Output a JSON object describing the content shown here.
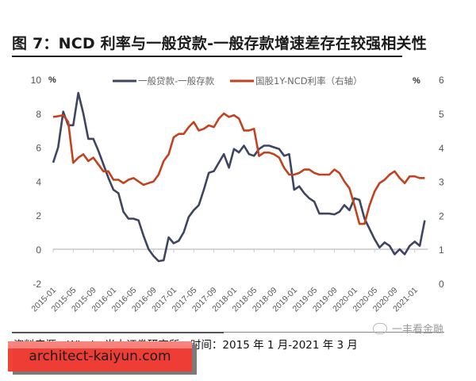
{
  "title": "图 7：NCD 利率与一般贷款-一般存款增速差存在较强相关性",
  "source": "资料来源：Wind，光大证券研究所；时间：2015 年 1 月-2021 年 3 月",
  "watermark": "一丰看金融",
  "banner": {
    "text": "architect-kaiyun.com",
    "color": "#f23c32"
  },
  "colors": {
    "series_loan_deposit": "#3f4461",
    "series_ncd": "#c2421f",
    "axis": "#c8c8c8",
    "tick_text": "#555555"
  },
  "chart_data": {
    "type": "line",
    "title": "图 7：NCD 利率与一般贷款-一般存款增速差存在较强相关性",
    "xlabel": "",
    "ylabel": "%",
    "y2label": "%",
    "ylim": [
      -2,
      10
    ],
    "y2lim": [
      0,
      6
    ],
    "yticks": [
      -2,
      0,
      2,
      4,
      6,
      8,
      10
    ],
    "y2ticks": [
      0,
      1,
      2,
      3,
      4,
      5,
      6
    ],
    "x_tick_labels": [
      "2015-01",
      "2015-05",
      "2015-09",
      "2016-01",
      "2016-05",
      "2016-09",
      "2017-01",
      "2017-05",
      "2017-09",
      "2018-01",
      "2018-05",
      "2018-09",
      "2019-01",
      "2019-05",
      "2019-09",
      "2020-01",
      "2020-05",
      "2020-09",
      "2021-01"
    ],
    "x_start": "2015-01",
    "x_end": "2021-03",
    "grid": false,
    "legend_position": "top",
    "series": [
      {
        "name": "一般贷款-一般存款",
        "axis": "left",
        "color": "#3f4461",
        "values": [
          5.1,
          6.0,
          8.1,
          7.3,
          7.3,
          9.2,
          8.0,
          6.5,
          6.5,
          5.8,
          5.0,
          4.2,
          3.5,
          3.3,
          2.2,
          1.8,
          1.8,
          1.7,
          0.8,
          0.0,
          -0.4,
          -0.7,
          -0.65,
          0.7,
          0.35,
          0.5,
          1.0,
          1.9,
          2.3,
          2.6,
          3.5,
          4.5,
          4.6,
          5.1,
          5.6,
          4.8,
          5.9,
          5.7,
          6.1,
          5.6,
          5.5,
          5.9,
          6.1,
          6.1,
          6.0,
          5.9,
          5.5,
          5.6,
          3.5,
          3.7,
          3.3,
          3.0,
          2.8,
          2.1,
          2.1,
          2.1,
          2.05,
          2.2,
          2.6,
          2.3,
          3.0,
          2.9,
          1.8,
          1.2,
          0.6,
          0.1,
          0.4,
          0.2,
          -0.3,
          0.0,
          -0.3,
          0.2,
          0.45,
          0.2,
          1.7
        ]
      },
      {
        "name": "国股1Y-NCD利率（右轴）",
        "axis": "right",
        "color": "#c2421f",
        "values": [
          4.9,
          4.92,
          4.95,
          4.75,
          3.55,
          3.7,
          3.8,
          3.6,
          3.7,
          3.5,
          3.3,
          3.3,
          3.05,
          3.05,
          2.95,
          3.05,
          3.1,
          3.0,
          2.9,
          2.95,
          3.0,
          3.2,
          3.6,
          3.8,
          4.3,
          4.4,
          4.4,
          4.6,
          4.75,
          4.5,
          4.55,
          4.65,
          4.6,
          4.85,
          5.0,
          4.9,
          4.95,
          4.85,
          4.5,
          4.5,
          4.55,
          3.75,
          3.85,
          3.85,
          3.8,
          3.7,
          3.4,
          3.2,
          3.2,
          3.25,
          3.35,
          3.35,
          3.25,
          3.2,
          3.2,
          3.2,
          3.35,
          3.25,
          3.0,
          2.8,
          2.3,
          1.75,
          1.75,
          2.3,
          2.7,
          2.95,
          3.05,
          3.2,
          3.3,
          3.1,
          2.95,
          3.15,
          3.15,
          3.1,
          3.1
        ]
      }
    ]
  },
  "legend": {
    "left_unit": "%",
    "right_unit": "%",
    "items": [
      {
        "label": "一般贷款-一般存款"
      },
      {
        "label": "国股1Y-NCD利率（右轴）"
      }
    ]
  }
}
